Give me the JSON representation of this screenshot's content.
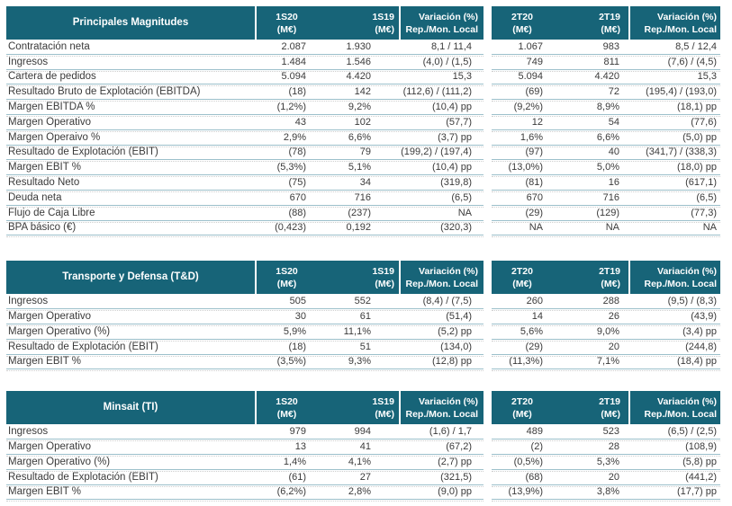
{
  "colors": {
    "header_bg": "#176478",
    "row_line": "#9cc0cb",
    "text": "#3a3a3a"
  },
  "tables": [
    {
      "title": "Principales Magnitudes",
      "columns": [
        {
          "line1": "1S20",
          "line2": "(M€)"
        },
        {
          "line1": "1S19",
          "line2": "(M€)"
        },
        {
          "line1": "Variación (%)",
          "line2": "Rep./Mon. Local"
        },
        {
          "line1": "2T20",
          "line2": "(M€)"
        },
        {
          "line1": "2T19",
          "line2": "(M€)"
        },
        {
          "line1": "Variación (%)",
          "line2": "Rep./Mon. Local"
        }
      ],
      "rows": [
        {
          "label": "Contratación neta",
          "values": [
            "2.087",
            "1.930",
            "8,1 / 11,4",
            "1.067",
            "983",
            "8,5 / 12,4"
          ]
        },
        {
          "label": "Ingresos",
          "values": [
            "1.484",
            "1.546",
            "(4,0) / (1,5)",
            "749",
            "811",
            "(7,6) / (4,5)"
          ]
        },
        {
          "label": "Cartera de pedidos",
          "values": [
            "5.094",
            "4.420",
            "15,3",
            "5.094",
            "4.420",
            "15,3"
          ]
        },
        {
          "label": "Resultado Bruto de Explotación (EBITDA)",
          "values": [
            "(18)",
            "142",
            "(112,6) / (111,2)",
            "(69)",
            "72",
            "(195,4) / (193,0)"
          ]
        },
        {
          "label": "Margen EBITDA %",
          "values": [
            "(1,2%)",
            "9,2%",
            "(10,4) pp",
            "(9,2%)",
            "8,9%",
            "(18,1) pp"
          ]
        },
        {
          "label": "Margen Operativo",
          "values": [
            "43",
            "102",
            "(57,7)",
            "12",
            "54",
            "(77,6)"
          ]
        },
        {
          "label": "Margen Operaivo %",
          "values": [
            "2,9%",
            "6,6%",
            "(3,7) pp",
            "1,6%",
            "6,6%",
            "(5,0) pp"
          ]
        },
        {
          "label": "Resultado de Explotación (EBIT)",
          "values": [
            "(78)",
            "79",
            "(199,2) / (197,4)",
            "(97)",
            "40",
            "(341,7) / (338,3)"
          ]
        },
        {
          "label": "Margen EBIT %",
          "values": [
            "(5,3%)",
            "5,1%",
            "(10,4) pp",
            "(13,0%)",
            "5,0%",
            "(18,0) pp"
          ]
        },
        {
          "label": "Resultado Neto",
          "values": [
            "(75)",
            "34",
            "(319,8)",
            "(81)",
            "16",
            "(617,1)"
          ]
        },
        {
          "label": "Deuda neta",
          "values": [
            "670",
            "716",
            "(6,5)",
            "670",
            "716",
            "(6,5)"
          ]
        },
        {
          "label": "Flujo de Caja Libre",
          "values": [
            "(88)",
            "(237)",
            "NA",
            "(29)",
            "(129)",
            "(77,3)"
          ]
        },
        {
          "label": "BPA básico (€)",
          "values": [
            "(0,423)",
            "0,192",
            "(320,3)",
            "NA",
            "NA",
            "NA"
          ]
        }
      ]
    },
    {
      "title": "Transporte y Defensa (T&D)",
      "columns": [
        {
          "line1": "1S20",
          "line2": "(M€)"
        },
        {
          "line1": "1S19",
          "line2": "(M€)"
        },
        {
          "line1": "Variación (%)",
          "line2": "Rep./Mon. Local"
        },
        {
          "line1": "2T20",
          "line2": "(M€)"
        },
        {
          "line1": "2T19",
          "line2": "(M€)"
        },
        {
          "line1": "Variación (%)",
          "line2": "Rep./Mon. Local"
        }
      ],
      "rows": [
        {
          "label": "Ingresos",
          "values": [
            "505",
            "552",
            "(8,4) / (7,5)",
            "260",
            "288",
            "(9,5) / (8,3)"
          ]
        },
        {
          "label": "Margen Operativo",
          "values": [
            "30",
            "61",
            "(51,4)",
            "14",
            "26",
            "(43,9)"
          ]
        },
        {
          "label": "Margen Operativo (%)",
          "values": [
            "5,9%",
            "11,1%",
            "(5,2) pp",
            "5,6%",
            "9,0%",
            "(3,4) pp"
          ]
        },
        {
          "label": "Resultado de Explotación (EBIT)",
          "values": [
            "(18)",
            "51",
            "(134,0)",
            "(29)",
            "20",
            "(244,8)"
          ]
        },
        {
          "label": "Margen EBIT %",
          "values": [
            "(3,5%)",
            "9,3%",
            "(12,8) pp",
            "(11,3%)",
            "7,1%",
            "(18,4) pp"
          ]
        }
      ]
    },
    {
      "title": "Minsait (TI)",
      "columns": [
        {
          "line1": "1S20",
          "line2": "(M€)"
        },
        {
          "line1": "1S19",
          "line2": "(M€)"
        },
        {
          "line1": "Variación (%)",
          "line2": "Rep./Mon. Local"
        },
        {
          "line1": "2T20",
          "line2": "(M€)"
        },
        {
          "line1": "2T19",
          "line2": "(M€)"
        },
        {
          "line1": "Variación (%)",
          "line2": "Rep./Mon. Local"
        }
      ],
      "rows": [
        {
          "label": "Ingresos",
          "values": [
            "979",
            "994",
            "(1,6) / 1,7",
            "489",
            "523",
            "(6,5) / (2,5)"
          ]
        },
        {
          "label": "Margen Operativo",
          "values": [
            "13",
            "41",
            "(67,2)",
            "(2)",
            "28",
            "(108,9)"
          ]
        },
        {
          "label": "Margen Operativo (%)",
          "values": [
            "1,4%",
            "4,1%",
            "(2,7) pp",
            "(0,5%)",
            "5,3%",
            "(5,8) pp"
          ]
        },
        {
          "label": "Resultado de Explotación (EBIT)",
          "values": [
            "(61)",
            "27",
            "(321,5)",
            "(68)",
            "20",
            "(441,2)"
          ]
        },
        {
          "label": "Margen EBIT %",
          "values": [
            "(6,2%)",
            "2,8%",
            "(9,0) pp",
            "(13,9%)",
            "3,8%",
            "(17,7) pp"
          ]
        }
      ]
    }
  ]
}
